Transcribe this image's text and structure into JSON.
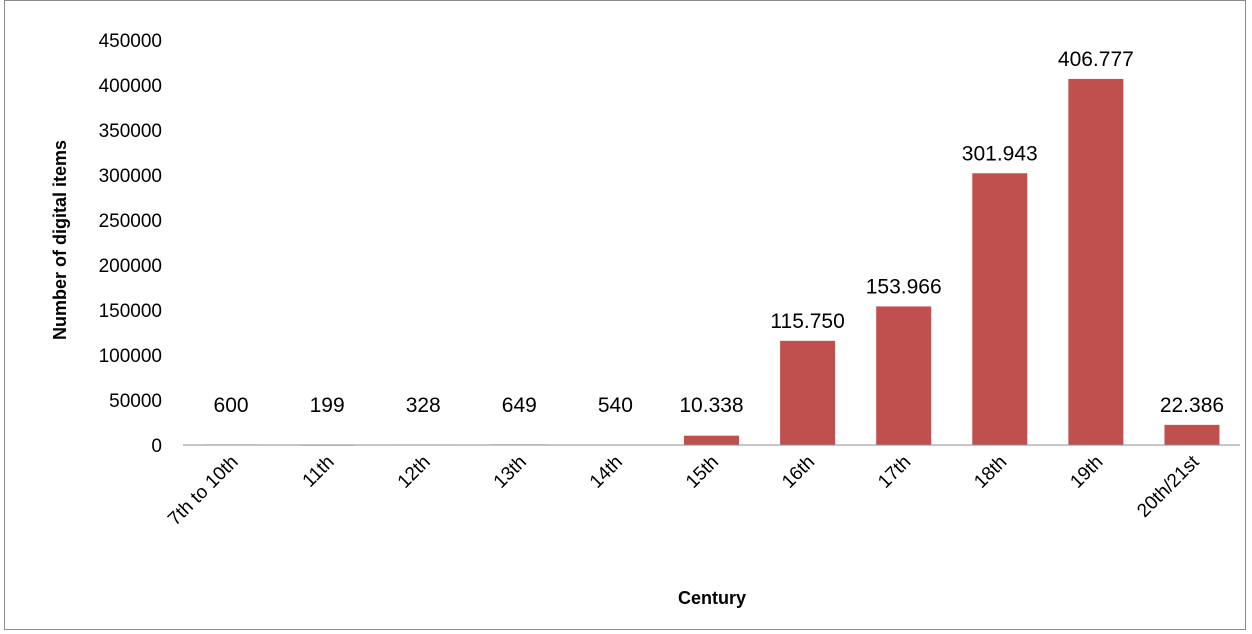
{
  "chart_data": {
    "type": "bar",
    "categories": [
      "7th to 10th",
      "11th",
      "12th",
      "13th",
      "14th",
      "15th",
      "16th",
      "17th",
      "18th",
      "19th",
      "20th/21st"
    ],
    "values": [
      600,
      199,
      328,
      649,
      540,
      10338,
      115750,
      153966,
      301943,
      406777,
      22386
    ],
    "data_labels": [
      "600",
      "199",
      "328",
      "649",
      "540",
      "10.338",
      "115.750",
      "153.966",
      "301.943",
      "406.777",
      "22.386"
    ],
    "xlabel": "Century",
    "ylabel": "Number of digital items",
    "ylim": [
      0,
      450000
    ],
    "yticks": [
      0,
      50000,
      100000,
      150000,
      200000,
      250000,
      300000,
      350000,
      400000,
      450000
    ],
    "ytick_labels": [
      "0",
      "50000",
      "100000",
      "150000",
      "200000",
      "250000",
      "300000",
      "350000",
      "400000",
      "450000"
    ],
    "grid": false,
    "legend": "none",
    "bar_color": "#c0504d"
  }
}
